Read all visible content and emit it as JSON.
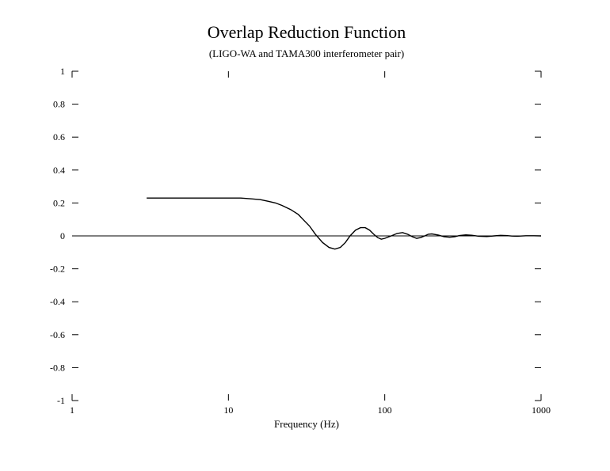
{
  "chart_data": {
    "type": "line",
    "title": "Overlap Reduction Function",
    "subtitle": "(LIGO-WA and TAMA300 interferometer pair)",
    "xlabel": "Frequency (Hz)",
    "ylabel": "",
    "x_scale": "log",
    "xlim": [
      1,
      1000
    ],
    "ylim": [
      -1,
      1
    ],
    "grid": false,
    "x_ticks": [
      {
        "value": 1,
        "label": "1"
      },
      {
        "value": 10,
        "label": "10"
      },
      {
        "value": 100,
        "label": "100"
      },
      {
        "value": 1000,
        "label": "1000"
      }
    ],
    "y_ticks": [
      {
        "value": 1,
        "label": "1"
      },
      {
        "value": 0.8,
        "label": "0.8"
      },
      {
        "value": 0.6,
        "label": "0.6"
      },
      {
        "value": 0.4,
        "label": "0.4"
      },
      {
        "value": 0.2,
        "label": "0.2"
      },
      {
        "value": 0,
        "label": "0"
      },
      {
        "value": -0.2,
        "label": "-0.2"
      },
      {
        "value": -0.4,
        "label": "-0.4"
      },
      {
        "value": -0.6,
        "label": "-0.6"
      },
      {
        "value": -0.8,
        "label": "-0.8"
      },
      {
        "value": -1,
        "label": "-1"
      }
    ],
    "series": [
      {
        "color": "#000000",
        "x": [
          3,
          4,
          5,
          6,
          7,
          8,
          9,
          10,
          11,
          12,
          14,
          16,
          18,
          20,
          22,
          25,
          28,
          30,
          33,
          36,
          40,
          44,
          48,
          52,
          56,
          60,
          65,
          70,
          75,
          80,
          85,
          90,
          95,
          100,
          110,
          120,
          130,
          140,
          150,
          160,
          170,
          180,
          190,
          200,
          220,
          240,
          260,
          280,
          300,
          330,
          360,
          400,
          450,
          500,
          550,
          600,
          650,
          700,
          800,
          900,
          1000
        ],
        "y": [
          0.23,
          0.23,
          0.23,
          0.23,
          0.23,
          0.23,
          0.23,
          0.23,
          0.23,
          0.23,
          0.225,
          0.22,
          0.21,
          0.2,
          0.185,
          0.16,
          0.13,
          0.1,
          0.06,
          0.01,
          -0.04,
          -0.07,
          -0.08,
          -0.07,
          -0.04,
          0.0,
          0.035,
          0.05,
          0.05,
          0.035,
          0.01,
          -0.01,
          -0.02,
          -0.015,
          0.0,
          0.015,
          0.02,
          0.01,
          -0.005,
          -0.015,
          -0.01,
          0.0,
          0.01,
          0.012,
          0.005,
          -0.005,
          -0.008,
          -0.005,
          0.002,
          0.006,
          0.004,
          -0.002,
          -0.004,
          0.0,
          0.003,
          0.002,
          -0.001,
          -0.002,
          0.001,
          0.001,
          0.0
        ]
      }
    ]
  }
}
